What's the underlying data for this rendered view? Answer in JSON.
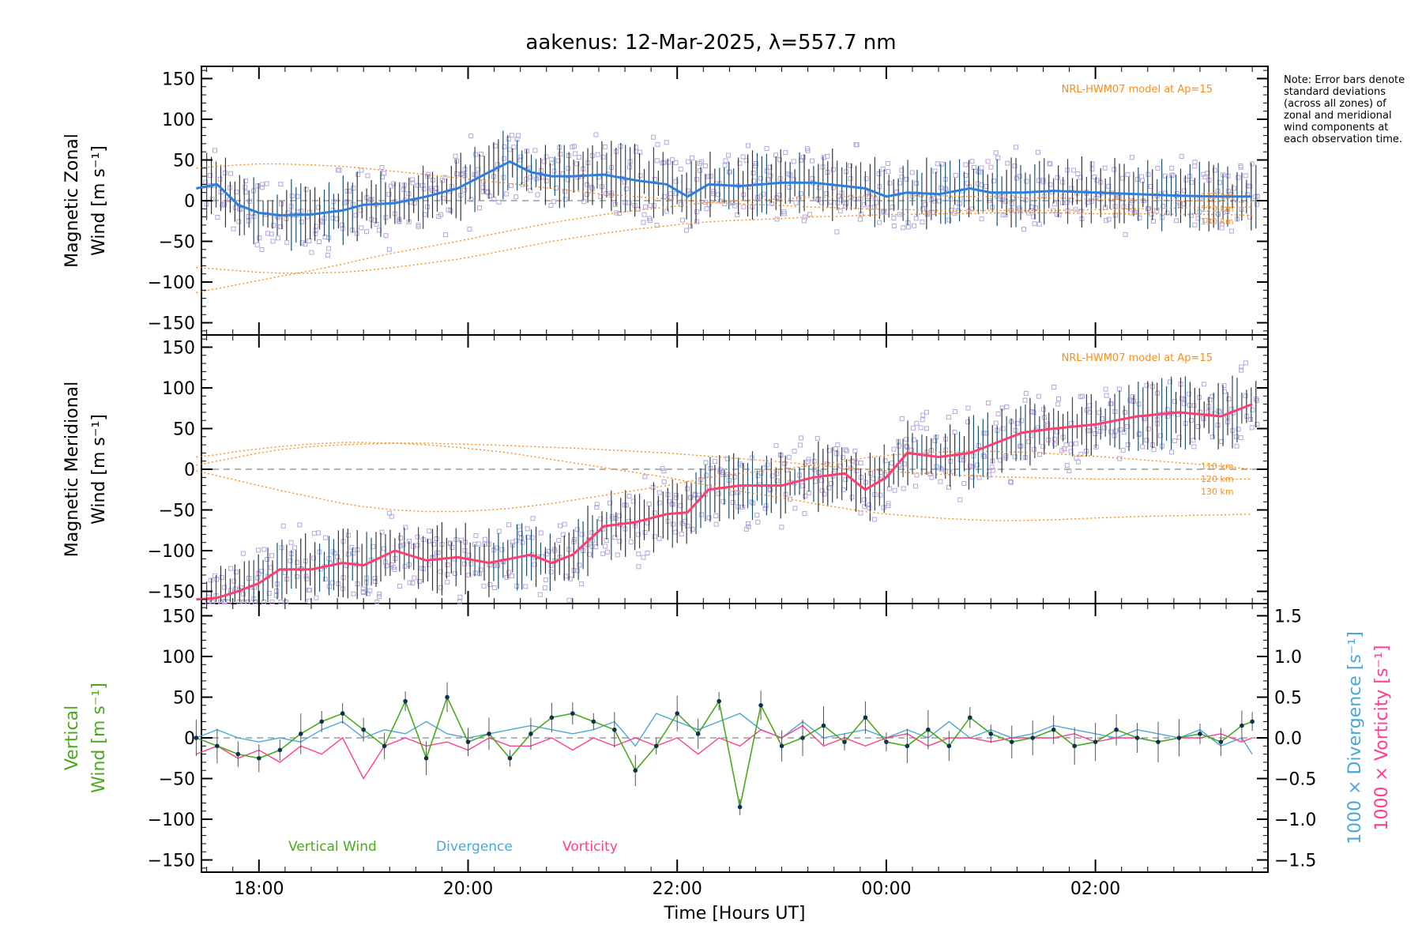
{
  "title": "aakenus: 12-Mar-2025, λ=557.7 nm",
  "note": "Note: Error bars denote standard deviations (across all zones) of zonal and meridional wind components at each observation time.",
  "colors": {
    "zonal_line": "#2a7fe0",
    "meridional_line": "#ff3d6e",
    "model": "#ff8c1a",
    "vertical": "#4aaa1e",
    "divergence": "#4aa8d8",
    "vorticity": "#ff3d8c",
    "scatter": "#b4a6dc",
    "errbar": "#333333",
    "zero_dash": "#888888"
  },
  "chart_data": [
    {
      "type": "line",
      "panel": "top",
      "ylabel_line1": "Magnetic Zonal",
      "ylabel_line2": "Wind [m s⁻¹]",
      "ylim": [
        -165,
        165
      ],
      "yticks": [
        "150",
        "100",
        "50",
        "0",
        "−50",
        "−100",
        "−150"
      ],
      "model_label": "NRL-HWM07 model at Ap=15",
      "model_heights": [
        "110 km",
        "120 km",
        "130 km"
      ],
      "x": [
        17.4,
        17.6,
        17.8,
        18.0,
        18.2,
        18.5,
        18.8,
        19.0,
        19.3,
        19.6,
        19.9,
        20.2,
        20.4,
        20.6,
        20.8,
        21.0,
        21.3,
        21.6,
        21.9,
        22.1,
        22.3,
        22.6,
        23.0,
        23.3,
        23.6,
        23.8,
        24.0,
        24.2,
        24.5,
        24.8,
        25.0,
        25.3,
        25.6,
        26.0,
        26.4,
        26.8,
        27.2,
        27.5
      ],
      "series": [
        {
          "name": "Zonal Wind",
          "values": [
            15,
            20,
            -5,
            -15,
            -18,
            -17,
            -12,
            -5,
            -3,
            5,
            15,
            35,
            48,
            35,
            30,
            30,
            32,
            25,
            20,
            5,
            20,
            18,
            22,
            22,
            18,
            15,
            5,
            10,
            8,
            15,
            10,
            10,
            12,
            10,
            8,
            6,
            5,
            5
          ]
        },
        {
          "name": "Model 110 km",
          "values": [
            -113,
            -108,
            -103,
            -98,
            -93,
            -86,
            -78,
            -72,
            -64,
            -57,
            -50,
            -42,
            -37,
            -32,
            -27,
            -23,
            -17,
            -12,
            -8,
            -5,
            -2,
            0,
            2,
            4,
            5,
            6,
            6,
            6,
            6,
            5,
            5,
            4,
            3,
            2,
            1,
            0,
            -1,
            -2
          ]
        },
        {
          "name": "Model 120 km",
          "values": [
            -82,
            -84,
            -86,
            -88,
            -89,
            -89,
            -88,
            -86,
            -82,
            -77,
            -72,
            -65,
            -60,
            -55,
            -50,
            -46,
            -40,
            -35,
            -31,
            -28,
            -26,
            -24,
            -22,
            -20,
            -19,
            -18,
            -17,
            -17,
            -16,
            -16,
            -15,
            -15,
            -15,
            -16,
            -16,
            -17,
            -17,
            -18
          ]
        },
        {
          "name": "Model 130 km",
          "values": [
            40,
            42,
            44,
            45,
            45,
            44,
            42,
            40,
            36,
            32,
            28,
            24,
            21,
            18,
            15,
            12,
            8,
            5,
            2,
            0,
            -2,
            -4,
            -6,
            -8,
            -9,
            -10,
            -11,
            -11,
            -12,
            -12,
            -12,
            -12,
            -12,
            -11,
            -10,
            -9,
            -8,
            -8
          ]
        }
      ]
    },
    {
      "type": "line",
      "panel": "middle",
      "ylabel_line1": "Magnetic Meridional",
      "ylabel_line2": "Wind [m s⁻¹]",
      "ylim": [
        -165,
        165
      ],
      "yticks": [
        "150",
        "100",
        "50",
        "0",
        "−50",
        "−100",
        "−150"
      ],
      "model_label": "NRL-HWM07 model at Ap=15",
      "model_heights": [
        "110 km",
        "120 km",
        "130 km"
      ],
      "x": [
        17.4,
        17.6,
        17.8,
        18.0,
        18.2,
        18.5,
        18.8,
        19.0,
        19.3,
        19.6,
        19.9,
        20.2,
        20.4,
        20.6,
        20.8,
        21.0,
        21.3,
        21.6,
        21.9,
        22.1,
        22.3,
        22.6,
        23.0,
        23.3,
        23.6,
        23.8,
        24.0,
        24.2,
        24.5,
        24.8,
        25.0,
        25.3,
        25.6,
        26.0,
        26.4,
        26.8,
        27.2,
        27.5
      ],
      "series": [
        {
          "name": "Meridional Wind",
          "values": [
            -160,
            -158,
            -150,
            -140,
            -123,
            -123,
            -115,
            -118,
            -100,
            -112,
            -108,
            -115,
            -110,
            -105,
            -115,
            -105,
            -70,
            -65,
            -55,
            -53,
            -25,
            -20,
            -20,
            -10,
            -5,
            -25,
            -10,
            20,
            15,
            20,
            30,
            45,
            50,
            55,
            65,
            70,
            65,
            80
          ]
        },
        {
          "name": "Model 110 km",
          "values": [
            -2,
            -8,
            -14,
            -20,
            -26,
            -34,
            -42,
            -46,
            -50,
            -52,
            -52,
            -50,
            -48,
            -45,
            -42,
            -38,
            -32,
            -26,
            -20,
            -15,
            -10,
            -5,
            0,
            5,
            10,
            14,
            17,
            19,
            21,
            22,
            22,
            21,
            19,
            16,
            12,
            8,
            4,
            0
          ]
        },
        {
          "name": "Model 120 km",
          "values": [
            15,
            18,
            22,
            25,
            28,
            31,
            33,
            33,
            32,
            30,
            27,
            23,
            20,
            16,
            12,
            8,
            2,
            -4,
            -10,
            -15,
            -20,
            -27,
            -35,
            -42,
            -48,
            -52,
            -55,
            -57,
            -60,
            -62,
            -63,
            -63,
            -62,
            -60,
            -58,
            -57,
            -56,
            -55
          ]
        },
        {
          "name": "Model 130 km",
          "values": [
            5,
            10,
            15,
            20,
            24,
            28,
            30,
            31,
            32,
            32,
            31,
            30,
            29,
            28,
            27,
            26,
            24,
            22,
            20,
            18,
            16,
            13,
            9,
            5,
            2,
            0,
            -2,
            -4,
            -6,
            -8,
            -9,
            -10,
            -11,
            -12,
            -12,
            -12,
            -12,
            -12
          ]
        }
      ]
    },
    {
      "type": "line",
      "panel": "bottom",
      "ylabel_line1": "Vertical",
      "ylabel_line2": "Wind [m s⁻¹]",
      "right_label_divergence": "1000 × Divergence [s⁻¹]",
      "right_label_vorticity": "1000 × Vorticity [s⁻¹]",
      "ylim": [
        -165,
        165
      ],
      "y2lim": [
        -1.65,
        1.65
      ],
      "yticks": [
        "150",
        "100",
        "50",
        "0",
        "−50",
        "−100",
        "−150"
      ],
      "y2ticks": [
        "1.5",
        "1.0",
        "0.5",
        "0.0",
        "−0.5",
        "−1.0",
        "−1.5"
      ],
      "legend": [
        "Vertical Wind",
        "Divergence",
        "Vorticity"
      ],
      "xticks": [
        "18:00",
        "20:00",
        "22:00",
        "00:00",
        "02:00"
      ],
      "xlabel": "Time [Hours UT]",
      "x": [
        17.4,
        17.6,
        17.8,
        18.0,
        18.2,
        18.4,
        18.6,
        18.8,
        19.0,
        19.2,
        19.4,
        19.6,
        19.8,
        20.0,
        20.2,
        20.4,
        20.6,
        20.8,
        21.0,
        21.2,
        21.4,
        21.6,
        21.8,
        22.0,
        22.2,
        22.4,
        22.6,
        22.8,
        23.0,
        23.2,
        23.4,
        23.6,
        23.8,
        24.0,
        24.2,
        24.4,
        24.6,
        24.8,
        25.0,
        25.2,
        25.4,
        25.6,
        25.8,
        26.0,
        26.2,
        26.4,
        26.6,
        26.8,
        27.0,
        27.2,
        27.4,
        27.5
      ],
      "series": [
        {
          "name": "Vertical Wind",
          "values": [
            0,
            -10,
            -20,
            -25,
            -15,
            5,
            20,
            30,
            10,
            -10,
            45,
            -25,
            50,
            -5,
            5,
            -25,
            5,
            25,
            30,
            20,
            10,
            -40,
            -10,
            30,
            5,
            45,
            -85,
            40,
            -10,
            0,
            15,
            -5,
            25,
            -5,
            -10,
            10,
            -10,
            25,
            5,
            -5,
            0,
            10,
            -10,
            -5,
            10,
            0,
            -5,
            0,
            5,
            -5,
            15,
            20
          ]
        },
        {
          "name": "Divergence",
          "values": [
            0.0,
            0.1,
            0.0,
            -0.05,
            0.0,
            -0.05,
            0.1,
            0.2,
            0.0,
            0.1,
            0.05,
            0.2,
            0.05,
            0.0,
            0.05,
            0.1,
            0.15,
            0.1,
            0.05,
            0.1,
            0.2,
            -0.1,
            0.3,
            0.2,
            0.1,
            0.2,
            0.3,
            0.1,
            0.0,
            0.2,
            0.0,
            0.05,
            0.1,
            0.0,
            0.1,
            0.0,
            0.2,
            0.0,
            0.1,
            0.0,
            0.05,
            0.15,
            0.1,
            0.05,
            0.0,
            0.1,
            0.05,
            0.0,
            0.1,
            -0.1,
            0.0,
            -0.2
          ]
        },
        {
          "name": "Vorticity",
          "values": [
            -0.2,
            -0.1,
            -0.25,
            -0.15,
            -0.3,
            -0.1,
            -0.2,
            0.0,
            -0.5,
            -0.1,
            0.0,
            -0.1,
            -0.05,
            -0.15,
            0.0,
            -0.1,
            -0.1,
            0.0,
            -0.15,
            0.0,
            -0.1,
            0.0,
            -0.1,
            0.0,
            -0.2,
            0.0,
            -0.1,
            0.1,
            0.0,
            0.15,
            -0.1,
            0.0,
            -0.1,
            0.0,
            0.05,
            -0.1,
            0.0,
            0.0,
            -0.05,
            0.0,
            0.0,
            0.0,
            0.05,
            -0.05,
            0.0,
            0.0,
            -0.05,
            0.0,
            0.0,
            0.05,
            -0.05,
            0.0
          ]
        }
      ]
    }
  ]
}
